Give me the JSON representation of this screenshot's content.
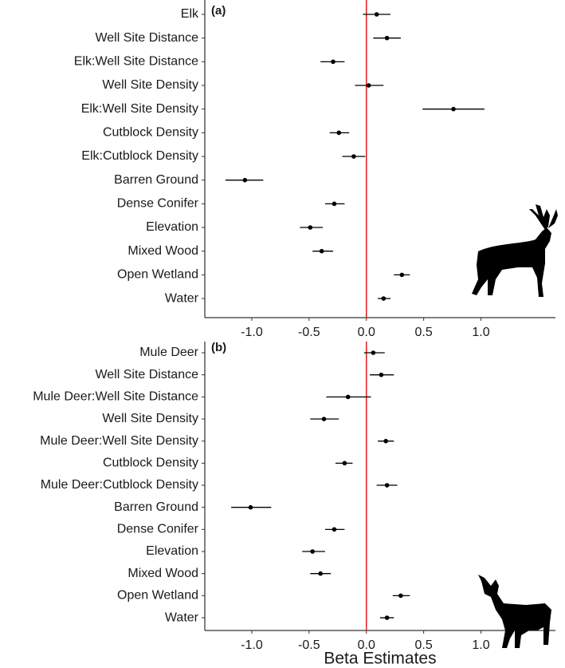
{
  "chart_data": [
    {
      "type": "forest",
      "panel_label": "(a)",
      "categories": [
        "Elk",
        "Well Site Distance",
        "Elk:Well Site Distance",
        "Well Site Density",
        "Elk:Well Site Density",
        "Cutblock Density",
        "Elk:Cutblock Density",
        "Barren Ground",
        "Dense Conifer",
        "Elevation",
        "Mixed Wood",
        "Open Wetland",
        "Water"
      ],
      "values": [
        0.09,
        0.18,
        -0.29,
        0.02,
        0.76,
        -0.24,
        -0.11,
        -1.06,
        -0.28,
        -0.49,
        -0.39,
        0.31,
        0.15
      ],
      "lower": [
        -0.03,
        0.06,
        -0.4,
        -0.1,
        0.49,
        -0.32,
        -0.21,
        -1.23,
        -0.36,
        -0.58,
        -0.47,
        0.24,
        0.1
      ],
      "upper": [
        0.21,
        0.3,
        -0.19,
        0.15,
        1.03,
        -0.15,
        -0.01,
        -0.9,
        -0.19,
        -0.38,
        -0.29,
        0.38,
        0.21
      ],
      "color": "#000000",
      "reference_line": {
        "value": 0,
        "color": "#e41a1c"
      },
      "xlim": [
        -1.41,
        1.65
      ],
      "xticks": [
        {
          "value": -1,
          "label": "-1.0"
        },
        -0.5,
        {
          "value": 0,
          "label": "0.0"
        },
        0.5,
        {
          "value": 1,
          "label": "1.0"
        }
      ]
    },
    {
      "type": "forest",
      "panel_label": "(b)",
      "xlabel": "Beta Estimates",
      "categories": [
        "Mule Deer",
        "Well Site Distance",
        "Mule Deer:Well Site Distance",
        "Well Site Density",
        "Mule Deer:Well Site Density",
        "Cutblock Density",
        "Mule Deer:Cutblock Density",
        "Barren Ground",
        "Dense Conifer",
        "Elevation",
        "Mixed Wood",
        "Open Wetland",
        "Water"
      ],
      "values": [
        0.06,
        0.13,
        -0.16,
        -0.37,
        0.17,
        -0.19,
        0.18,
        -1.01,
        -0.28,
        -0.47,
        -0.4,
        0.3,
        0.18
      ],
      "lower": [
        -0.02,
        0.03,
        -0.35,
        -0.49,
        0.1,
        -0.27,
        0.09,
        -1.18,
        -0.36,
        -0.56,
        -0.49,
        0.23,
        0.12
      ],
      "upper": [
        0.16,
        0.24,
        0.04,
        -0.24,
        0.24,
        -0.12,
        0.27,
        -0.83,
        -0.19,
        -0.36,
        -0.31,
        0.38,
        0.24
      ],
      "color": "#000000",
      "reference_line": {
        "value": 0,
        "color": "#e41a1c"
      },
      "xlim": [
        -1.41,
        1.65
      ],
      "xticks": [
        {
          "value": -1,
          "label": "-1.0"
        },
        -0.5,
        {
          "value": 0,
          "label": "0.0"
        },
        0.5,
        {
          "value": 1,
          "label": "1.0"
        }
      ]
    }
  ]
}
